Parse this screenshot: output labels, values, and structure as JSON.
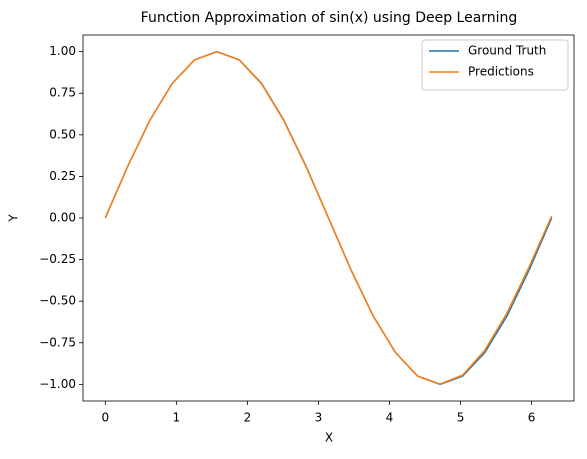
{
  "chart_data": {
    "type": "line",
    "title": "Function Approximation of sin(x) using Deep Learning",
    "x_label": "X",
    "y_label": "Y",
    "x": [
      0,
      0.314,
      0.628,
      0.942,
      1.257,
      1.571,
      1.885,
      2.199,
      2.513,
      2.827,
      3.142,
      3.456,
      3.77,
      4.084,
      4.398,
      4.712,
      5.027,
      5.341,
      5.655,
      5.969,
      6.283
    ],
    "series": [
      {
        "name": "Ground Truth",
        "color": "#1f77b4",
        "values": [
          0,
          0.309,
          0.588,
          0.809,
          0.951,
          1,
          0.951,
          0.809,
          0.588,
          0.309,
          0,
          -0.309,
          -0.588,
          -0.809,
          -0.951,
          -1,
          -0.951,
          -0.809,
          -0.588,
          -0.309,
          0
        ]
      },
      {
        "name": "Predictions",
        "color": "#ff7f0e",
        "values": [
          0.002,
          0.31,
          0.589,
          0.808,
          0.95,
          0.999,
          0.95,
          0.806,
          0.585,
          0.306,
          -0.002,
          -0.311,
          -0.589,
          -0.808,
          -0.95,
          -0.998,
          -0.945,
          -0.795,
          -0.57,
          -0.29,
          0.012
        ]
      }
    ],
    "xlim": [
      -0.314,
      6.597
    ],
    "ylim": [
      -1.1,
      1.1
    ],
    "xticks": [
      0,
      1,
      2,
      3,
      4,
      5,
      6
    ],
    "yticks": [
      {
        "value": -1,
        "label": "−1.00"
      },
      {
        "value": -0.75,
        "label": "−0.75"
      },
      {
        "value": -0.5,
        "label": "−0.50"
      },
      {
        "value": -0.25,
        "label": "−0.25"
      },
      {
        "value": 0,
        "label": "0.00"
      },
      {
        "value": 0.25,
        "label": "0.25"
      },
      {
        "value": 0.5,
        "label": "0.50"
      },
      {
        "value": 0.75,
        "label": "0.75"
      },
      {
        "value": 1,
        "label": "1.00"
      }
    ],
    "grid": false,
    "legend": "upper right"
  }
}
